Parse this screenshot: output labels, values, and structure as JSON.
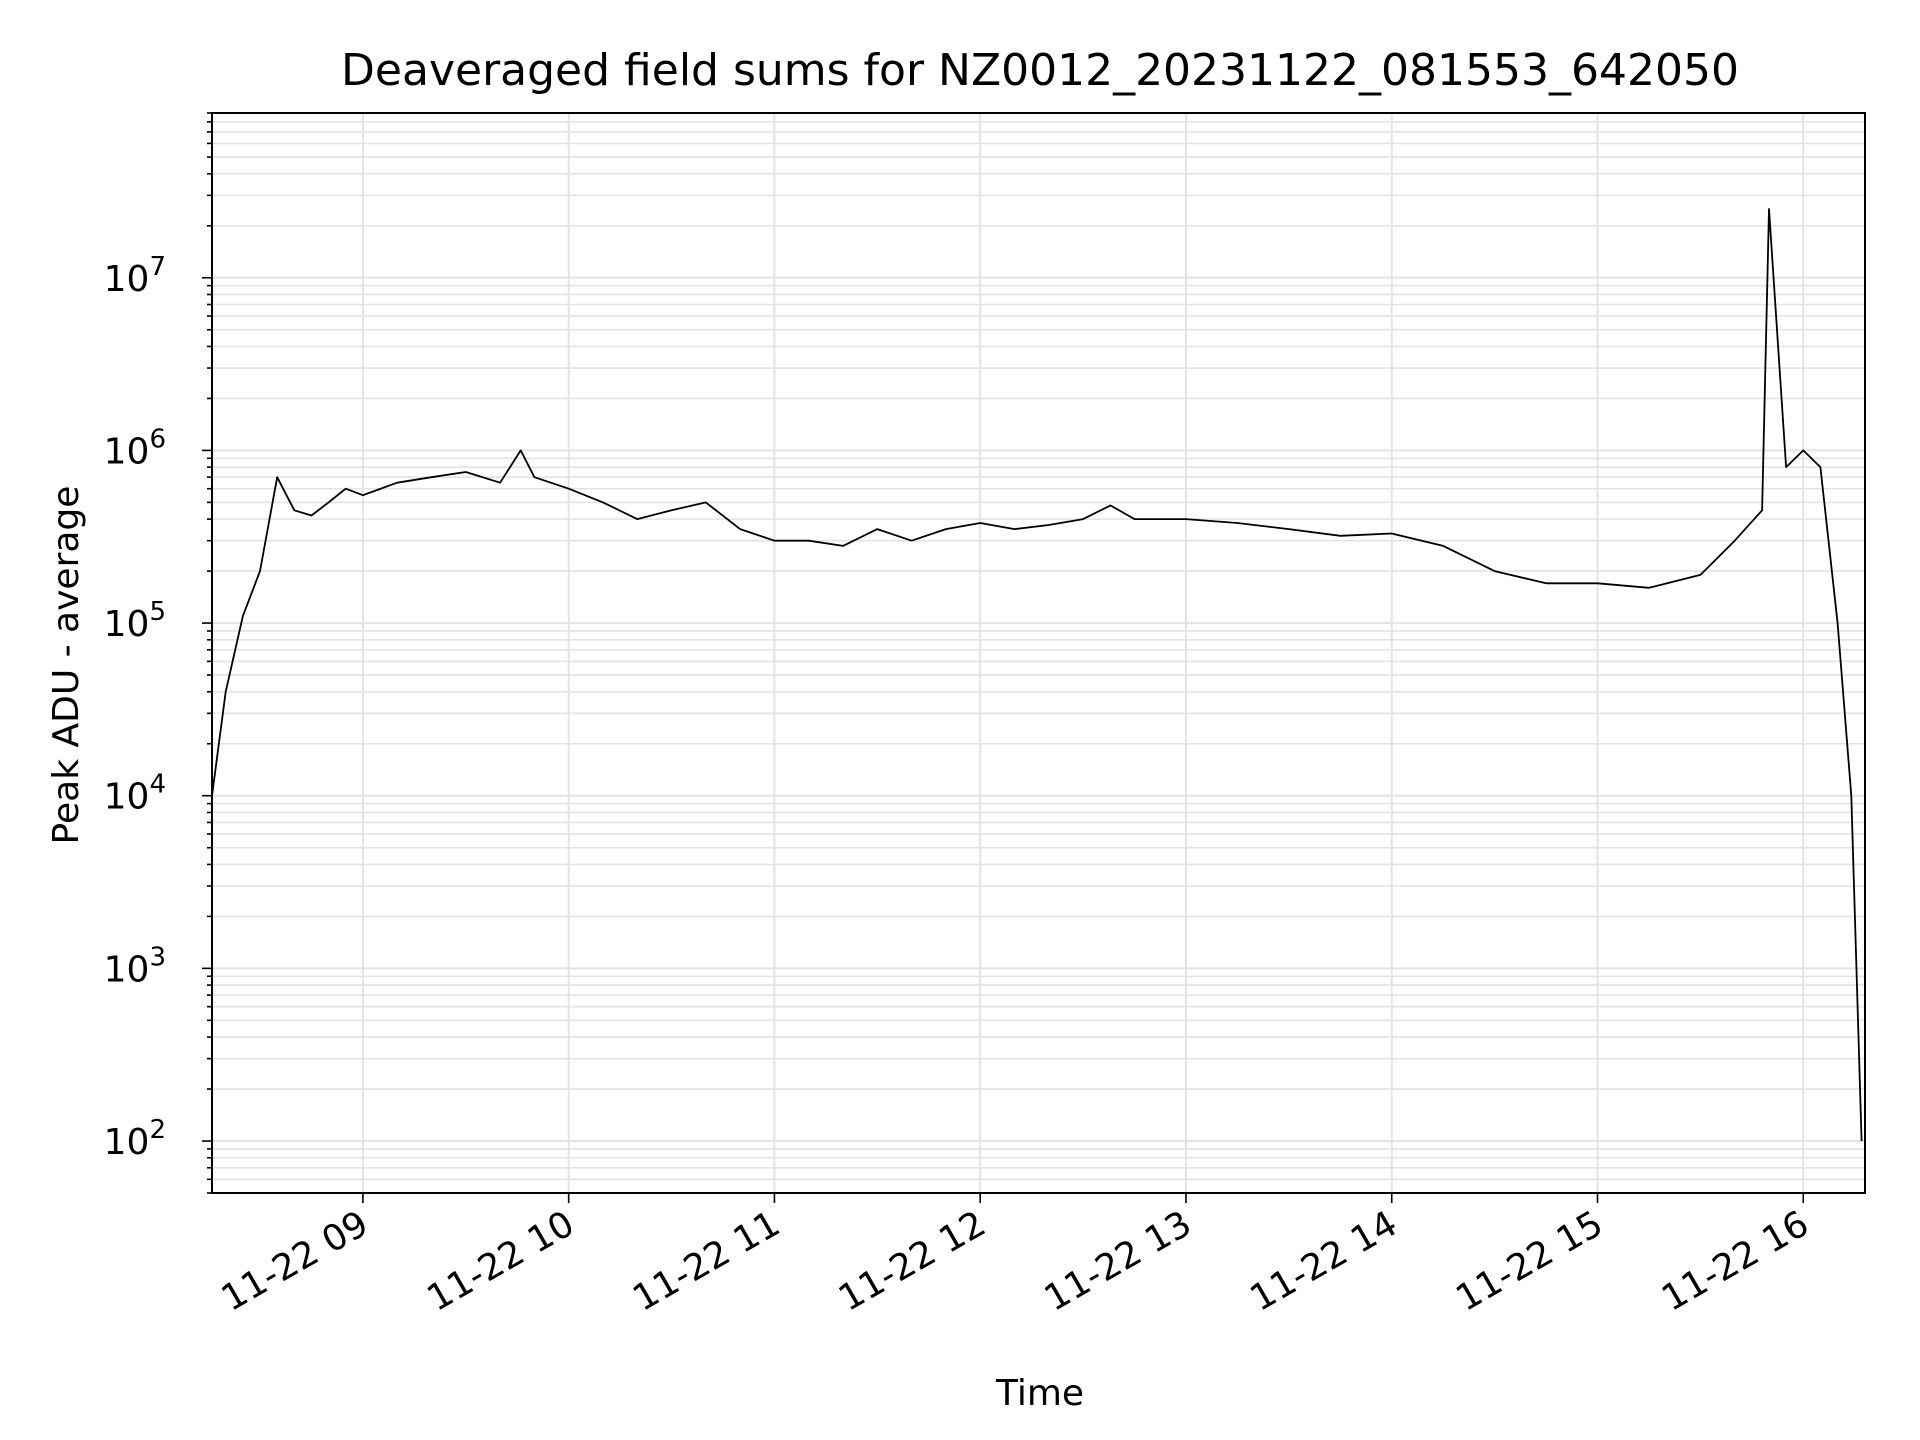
{
  "chart_data": {
    "type": "line",
    "title": "Deaveraged field sums for NZ0012_20231122_081553_642050",
    "xlabel": "Time",
    "ylabel": "Peak ADU - average",
    "yscale": "log",
    "ylim": [
      50,
      90000000
    ],
    "xlim": [
      "2023-11-22 08:16",
      "2023-11-22 16:18"
    ],
    "grid": true,
    "legend": "none",
    "line_color": "#000000",
    "x_ticks": [
      "11-22 09",
      "11-22 10",
      "11-22 11",
      "11-22 12",
      "11-22 13",
      "11-22 14",
      "11-22 15",
      "11-22 16"
    ],
    "y_ticks": [
      {
        "base": "10",
        "exp": "2"
      },
      {
        "base": "10",
        "exp": "3"
      },
      {
        "base": "10",
        "exp": "4"
      },
      {
        "base": "10",
        "exp": "5"
      },
      {
        "base": "10",
        "exp": "6"
      },
      {
        "base": "10",
        "exp": "7"
      }
    ],
    "series": [
      {
        "x": [
          "2023-11-22 08:16",
          "2023-11-22 08:20",
          "2023-11-22 08:25",
          "2023-11-22 08:30",
          "2023-11-22 08:35",
          "2023-11-22 08:40",
          "2023-11-22 08:45",
          "2023-11-22 08:50",
          "2023-11-22 08:55",
          "2023-11-22 09:00",
          "2023-11-22 09:10",
          "2023-11-22 09:20",
          "2023-11-22 09:30",
          "2023-11-22 09:40",
          "2023-11-22 09:46",
          "2023-11-22 09:50",
          "2023-11-22 10:00",
          "2023-11-22 10:10",
          "2023-11-22 10:20",
          "2023-11-22 10:30",
          "2023-11-22 10:40",
          "2023-11-22 10:50",
          "2023-11-22 11:00",
          "2023-11-22 11:10",
          "2023-11-22 11:20",
          "2023-11-22 11:30",
          "2023-11-22 11:40",
          "2023-11-22 11:50",
          "2023-11-22 12:00",
          "2023-11-22 12:10",
          "2023-11-22 12:20",
          "2023-11-22 12:30",
          "2023-11-22 12:38",
          "2023-11-22 12:45",
          "2023-11-22 13:00",
          "2023-11-22 13:15",
          "2023-11-22 13:30",
          "2023-11-22 13:45",
          "2023-11-22 14:00",
          "2023-11-22 14:15",
          "2023-11-22 14:30",
          "2023-11-22 14:45",
          "2023-11-22 15:00",
          "2023-11-22 15:15",
          "2023-11-22 15:30",
          "2023-11-22 15:40",
          "2023-11-22 15:48",
          "2023-11-22 15:50",
          "2023-11-22 15:55",
          "2023-11-22 16:00",
          "2023-11-22 16:05",
          "2023-11-22 16:10",
          "2023-11-22 16:14",
          "2023-11-22 16:17"
        ],
        "y": [
          10000,
          40000,
          110000,
          200000,
          700000,
          450000,
          420000,
          500000,
          600000,
          550000,
          650000,
          700000,
          750000,
          650000,
          1000000,
          700000,
          600000,
          500000,
          400000,
          450000,
          500000,
          350000,
          300000,
          300000,
          280000,
          350000,
          300000,
          350000,
          380000,
          350000,
          370000,
          400000,
          480000,
          400000,
          400000,
          380000,
          350000,
          320000,
          330000,
          280000,
          200000,
          170000,
          170000,
          160000,
          190000,
          300000,
          450000,
          25000000,
          800000,
          1000000,
          800000,
          100000,
          10000,
          100
        ]
      }
    ]
  }
}
